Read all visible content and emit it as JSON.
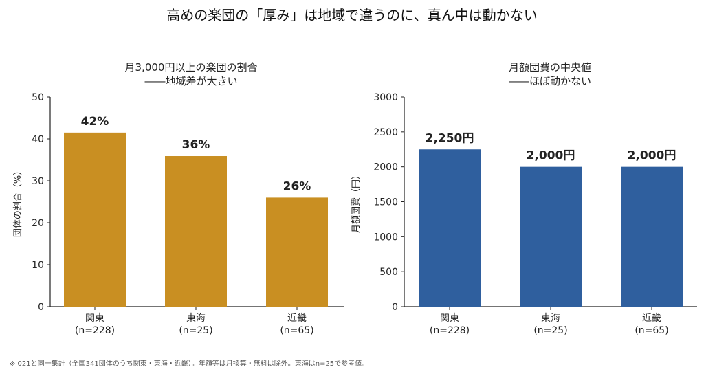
{
  "title": "高めの楽団の「厚み」は地域で違うのに、真ん中は動かない",
  "footnote": "※ 021と同一集計（全国341団体のうち関東・東海・近畿）。年額等は月換算・無料は除外。東海はn=25で参考値。",
  "chart_data": [
    {
      "type": "bar",
      "title": "月3,000円以上の楽団の割合",
      "subtitle": "――地域差が大きい",
      "ylabel": "団体の割合（%）",
      "xlabel": "",
      "categories": [
        "関東",
        "東海",
        "近畿"
      ],
      "category_sublabels": [
        "(n=228)",
        "(n=25)",
        "(n=65)"
      ],
      "values": [
        41.5,
        35.9,
        26.0
      ],
      "data_labels": [
        "42%",
        "36%",
        "26%"
      ],
      "ylim": [
        0,
        50
      ],
      "yticks": [
        "0",
        "10",
        "20",
        "30",
        "40",
        "50"
      ],
      "color": "#C98F22",
      "grid": false
    },
    {
      "type": "bar",
      "title": "月額団費の中央値",
      "subtitle": "――ほぼ動かない",
      "ylabel": "月額団費（円）",
      "xlabel": "",
      "categories": [
        "関東",
        "東海",
        "近畿"
      ],
      "category_sublabels": [
        "(n=228)",
        "(n=25)",
        "(n=65)"
      ],
      "values": [
        2250,
        2000,
        2000
      ],
      "data_labels": [
        "2,250円",
        "2,000円",
        "2,000円"
      ],
      "ylim": [
        0,
        3000
      ],
      "yticks": [
        "0",
        "500",
        "1000",
        "1500",
        "2000",
        "2500",
        "3000"
      ],
      "color": "#2F5F9E",
      "grid": false
    }
  ]
}
